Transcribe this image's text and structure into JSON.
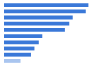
{
  "chart_data": {
    "type": "bar",
    "orientation": "horizontal",
    "categories": [
      null,
      null,
      null,
      null,
      null,
      null,
      null,
      null,
      null,
      null
    ],
    "values": [
      97,
      94,
      79,
      75,
      70,
      44,
      40,
      35,
      31,
      19
    ],
    "colors": [
      "#3a78d8",
      "#3a78d8",
      "#3a78d8",
      "#3a78d8",
      "#3a78d8",
      "#3a78d8",
      "#3a78d8",
      "#3a78d8",
      "#3a78d8",
      "#a9c5ef"
    ],
    "xlim": [
      0,
      100
    ],
    "grid": false,
    "tick_labels": false
  }
}
